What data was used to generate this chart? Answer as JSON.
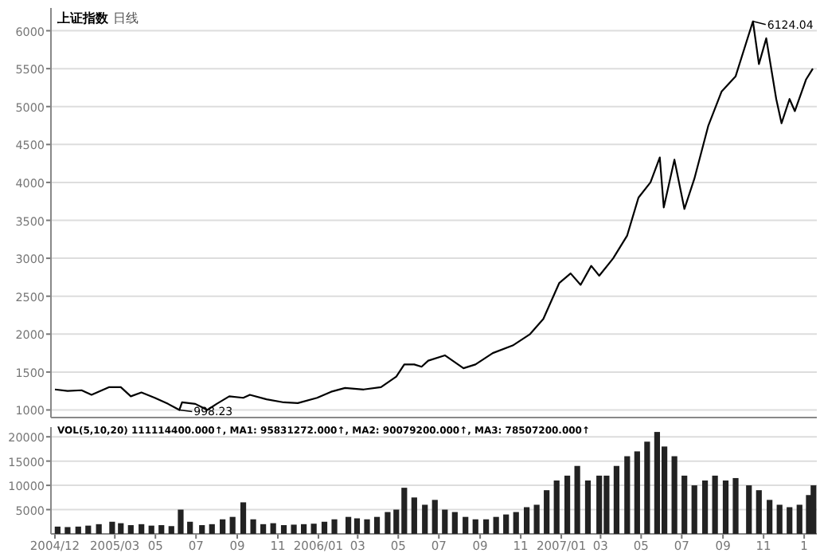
{
  "chart_data": [
    {
      "type": "line",
      "title": "上证指数",
      "subtitle": "日线",
      "x": [
        "2004-12-01",
        "2004-12-20",
        "2005-01-10",
        "2005-01-25",
        "2005-02-20",
        "2005-03-10",
        "2005-03-25",
        "2005-04-10",
        "2005-04-30",
        "2005-05-20",
        "2005-06-06",
        "2005-06-10",
        "2005-06-30",
        "2005-07-18",
        "2005-08-01",
        "2005-08-20",
        "2005-09-10",
        "2005-09-20",
        "2005-10-15",
        "2005-11-10",
        "2005-12-01",
        "2005-12-30",
        "2006-01-20",
        "2006-02-10",
        "2006-03-10",
        "2006-04-05",
        "2006-04-28",
        "2006-05-10",
        "2006-05-25",
        "2006-06-05",
        "2006-06-15",
        "2006-07-10",
        "2006-08-07",
        "2006-08-25",
        "2006-09-20",
        "2006-10-20",
        "2006-11-15",
        "2006-12-05",
        "2006-12-29",
        "2007-01-15",
        "2007-01-30",
        "2007-02-15",
        "2007-02-27",
        "2007-03-20",
        "2007-04-10",
        "2007-04-27",
        "2007-05-15",
        "2007-05-29",
        "2007-06-04",
        "2007-06-20",
        "2007-07-05",
        "2007-07-20",
        "2007-08-10",
        "2007-08-30",
        "2007-09-20",
        "2007-10-16",
        "2007-10-25",
        "2007-11-05",
        "2007-11-20",
        "2007-11-28",
        "2007-12-10",
        "2007-12-18",
        "2008-01-04",
        "2008-01-14"
      ],
      "series": [
        {
          "color": "#000000",
          "values": [
            1270,
            1250,
            1260,
            1200,
            1300,
            1300,
            1180,
            1230,
            1160,
            1080,
            1000,
            1100,
            1080,
            1000,
            1080,
            1180,
            1160,
            1200,
            1140,
            1100,
            1090,
            1160,
            1240,
            1290,
            1270,
            1300,
            1440,
            1600,
            1600,
            1570,
            1650,
            1720,
            1550,
            1600,
            1750,
            1850,
            2000,
            2200,
            2675,
            2800,
            2650,
            2900,
            2770,
            3000,
            3300,
            3800,
            4000,
            4330,
            3670,
            4300,
            3650,
            4050,
            4750,
            5200,
            5400,
            6124,
            5560,
            5900,
            5100,
            4780,
            5100,
            4940,
            5360,
            5500
          ]
        }
      ],
      "xlim": [
        "2004-11-25",
        "2008-01-20"
      ],
      "ylim": [
        900,
        6300
      ],
      "yticks": [
        1000,
        1500,
        2000,
        2500,
        3000,
        3500,
        4000,
        4500,
        5000,
        5500,
        6000
      ],
      "tick_labels": "y",
      "grid": "y",
      "annotations": [
        {
          "text": "6124.04",
          "x": "2007-10-16",
          "y": 6124
        },
        {
          "text": "998.23",
          "x": "2005-06-06",
          "y": 1000
        }
      ]
    },
    {
      "type": "bar",
      "title": "VOL(5,10,20) 111114400.000↑, MA1: 95831272.000↑, MA2: 90079200.000↑, MA3: 78507200.000↑",
      "x": [
        "2004-12-05",
        "2004-12-20",
        "2005-01-05",
        "2005-01-20",
        "2005-02-05",
        "2005-02-25",
        "2005-03-10",
        "2005-03-25",
        "2005-04-10",
        "2005-04-25",
        "2005-05-10",
        "2005-05-25",
        "2005-06-08",
        "2005-06-22",
        "2005-07-10",
        "2005-07-25",
        "2005-08-10",
        "2005-08-25",
        "2005-09-10",
        "2005-09-25",
        "2005-10-10",
        "2005-10-25",
        "2005-11-10",
        "2005-11-25",
        "2005-12-10",
        "2005-12-25",
        "2006-01-10",
        "2006-01-25",
        "2006-02-15",
        "2006-02-28",
        "2006-03-15",
        "2006-03-30",
        "2006-04-15",
        "2006-04-28",
        "2006-05-10",
        "2006-05-25",
        "2006-06-10",
        "2006-06-25",
        "2006-07-10",
        "2006-07-25",
        "2006-08-10",
        "2006-08-25",
        "2006-09-10",
        "2006-09-25",
        "2006-10-10",
        "2006-10-25",
        "2006-11-10",
        "2006-11-25",
        "2006-12-10",
        "2006-12-25",
        "2007-01-10",
        "2007-01-25",
        "2007-02-10",
        "2007-02-27",
        "2007-03-10",
        "2007-03-25",
        "2007-04-10",
        "2007-04-25",
        "2007-05-10",
        "2007-05-25",
        "2007-06-05",
        "2007-06-20",
        "2007-07-05",
        "2007-07-20",
        "2007-08-05",
        "2007-08-20",
        "2007-09-05",
        "2007-09-20",
        "2007-10-10",
        "2007-10-25",
        "2007-11-10",
        "2007-11-25",
        "2007-12-10",
        "2007-12-25",
        "2008-01-08",
        "2008-01-15"
      ],
      "series": [
        {
          "color": "#222222",
          "values": [
            1500,
            1400,
            1500,
            1700,
            2000,
            2500,
            2200,
            1800,
            2000,
            1700,
            1800,
            1600,
            5000,
            2500,
            1800,
            2000,
            3000,
            3500,
            6500,
            3000,
            2000,
            2200,
            1800,
            1900,
            2000,
            2100,
            2500,
            3000,
            3500,
            3200,
            3000,
            3500,
            4500,
            5000,
            9500,
            7500,
            6000,
            7000,
            5000,
            4500,
            3500,
            3000,
            3000,
            3500,
            4000,
            4500,
            5500,
            6000,
            9000,
            11000,
            12000,
            14000,
            11000,
            12000,
            12000,
            14000,
            16000,
            17000,
            19000,
            21000,
            18000,
            16000,
            12000,
            10000,
            11000,
            12000,
            11000,
            11500,
            10000,
            9000,
            7000,
            6000,
            5500,
            6000,
            8000,
            10000
          ]
        }
      ],
      "xlim": [
        "2004-11-25",
        "2008-01-20"
      ],
      "ylim": [
        0,
        22000
      ],
      "yticks": [
        5000,
        10000,
        15000,
        20000
      ],
      "xticks": [
        {
          "value": "2004-12-01",
          "label": "2004/12"
        },
        {
          "value": "2005-03-01",
          "label": "2005/03"
        },
        {
          "value": "2005-05-01",
          "label": "05"
        },
        {
          "value": "2005-07-01",
          "label": "07"
        },
        {
          "value": "2005-09-01",
          "label": "09"
        },
        {
          "value": "2005-11-01",
          "label": "11"
        },
        {
          "value": "2006-01-01",
          "label": "2006/01"
        },
        {
          "value": "2006-03-01",
          "label": "03"
        },
        {
          "value": "2006-05-01",
          "label": "05"
        },
        {
          "value": "2006-07-01",
          "label": "07"
        },
        {
          "value": "2006-09-01",
          "label": "09"
        },
        {
          "value": "2006-11-01",
          "label": "11"
        },
        {
          "value": "2007-01-01",
          "label": "2007/01"
        },
        {
          "value": "2007-03-01",
          "label": "03"
        },
        {
          "value": "2007-05-01",
          "label": "05"
        },
        {
          "value": "2007-07-01",
          "label": "07"
        },
        {
          "value": "2007-09-01",
          "label": "09"
        },
        {
          "value": "2007-11-01",
          "label": "11"
        },
        {
          "value": "2008-01-01",
          "label": "1"
        }
      ],
      "grid": "y"
    }
  ]
}
